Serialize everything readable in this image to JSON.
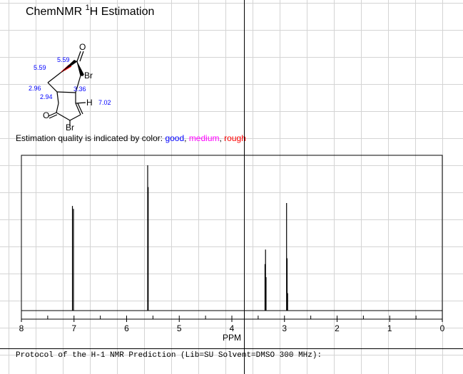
{
  "title": {
    "prefix": "ChemNMR ",
    "superscript": "1",
    "suffix": "H Estimation"
  },
  "molecule": {
    "atoms": {
      "o_top": "O",
      "br_right": "Br",
      "h": "H",
      "o_left": "O",
      "br_bottom": "Br"
    },
    "shifts": {
      "s1": "5.59",
      "s2": "5.59",
      "s3": "2.96",
      "s4": "2.94",
      "s5": "3.36",
      "s6": "7.02"
    },
    "colors": {
      "shift": "#0000ff",
      "bond": "#000000",
      "rough_bond": "#ff0000"
    }
  },
  "quality": {
    "prefix": "Estimation quality is indicated by color: ",
    "good": "good",
    "sep1": ", ",
    "medium": "medium",
    "sep2": ", ",
    "rough": "rough",
    "colors": {
      "good": "#0000ff",
      "medium": "#ff00ff",
      "rough": "#ff0000"
    }
  },
  "protocol": {
    "text": "Protocol of the H-1 NMR Prediction (Lib=SU Solvent=DMSO 300 MHz):"
  },
  "chart_data": {
    "type": "line",
    "xlabel": "PPM",
    "xlim": [
      8,
      0
    ],
    "x_reversed": true,
    "ticks": [
      "8",
      "7",
      "6",
      "5",
      "4",
      "3",
      "2",
      "1",
      "0"
    ],
    "peaks": [
      {
        "ppm": 7.03,
        "intensity": 0.72
      },
      {
        "ppm": 7.01,
        "intensity": 0.7
      },
      {
        "ppm": 5.6,
        "intensity": 1.0
      },
      {
        "ppm": 5.59,
        "intensity": 0.85
      },
      {
        "ppm": 3.37,
        "intensity": 0.32
      },
      {
        "ppm": 3.36,
        "intensity": 0.42
      },
      {
        "ppm": 3.35,
        "intensity": 0.23
      },
      {
        "ppm": 2.96,
        "intensity": 0.74
      },
      {
        "ppm": 2.95,
        "intensity": 0.36
      },
      {
        "ppm": 2.94,
        "intensity": 0.12
      }
    ]
  }
}
